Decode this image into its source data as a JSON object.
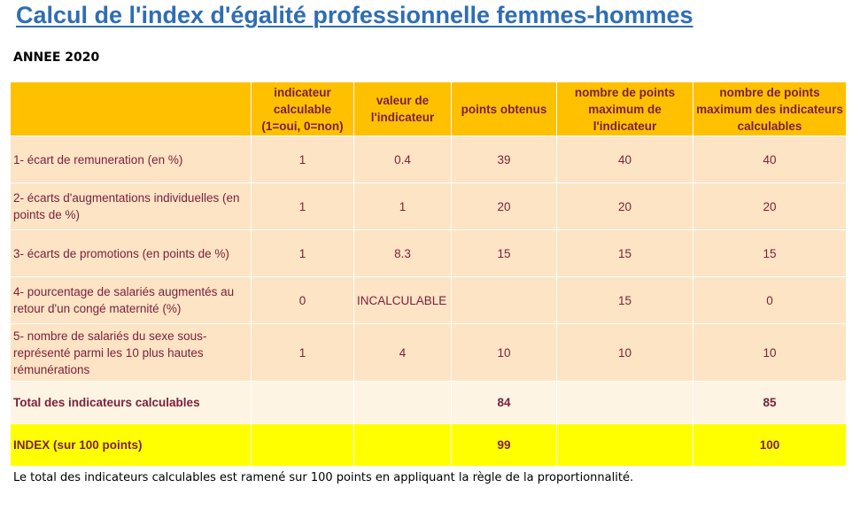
{
  "title": "Calcul de l'index d'égalité professionnelle femmes-hommes",
  "year_label": "ANNEE 2020",
  "table": {
    "headers": [
      "",
      "indicateur calculable (1=oui, 0=non)",
      "valeur de l'indicateur",
      "points obtenus",
      "nombre de points maximum de l'indicateur",
      "nombre de points maximum des indicateurs calculables"
    ],
    "rows": [
      {
        "label": "1- écart de remuneration (en %)",
        "calculable": "1",
        "valeur": "0.4",
        "points": "39",
        "max_indicateur": "40",
        "max_calculables": "40"
      },
      {
        "label": "2- écarts d'augmentations individuelles (en points de %)",
        "calculable": "1",
        "valeur": "1",
        "points": "20",
        "max_indicateur": "20",
        "max_calculables": "20"
      },
      {
        "label": "3- écarts de promotions (en points de %)",
        "calculable": "1",
        "valeur": "8.3",
        "points": "15",
        "max_indicateur": "15",
        "max_calculables": "15"
      },
      {
        "label": "4- pourcentage de salariés augmentés au retour d'un congé maternité (%)",
        "calculable": "0",
        "valeur": "INCALCULABLE",
        "points": "",
        "max_indicateur": "15",
        "max_calculables": "0"
      },
      {
        "label": "5- nombre de salariés du sexe sous-représenté parmi les 10 plus hautes rémunérations",
        "calculable": "1",
        "valeur": "4",
        "points": "10",
        "max_indicateur": "10",
        "max_calculables": "10"
      }
    ],
    "total": {
      "label": "Total des indicateurs calculables",
      "points": "84",
      "max_calculables": "85"
    },
    "index": {
      "label": "INDEX (sur 100 points)",
      "points": "99",
      "max_calculables": "100"
    }
  },
  "footnote": "Le total des indicateurs calculables est ramené sur 100 points en appliquant la règle de la proportionnalité.",
  "colors": {
    "title": "#2e6db4",
    "header_bg": "#ffc000",
    "row_bg": "#fce4c4",
    "total_bg": "#fdf4e3",
    "index_bg": "#ffff00",
    "cell_text": "#7a1f3d"
  }
}
